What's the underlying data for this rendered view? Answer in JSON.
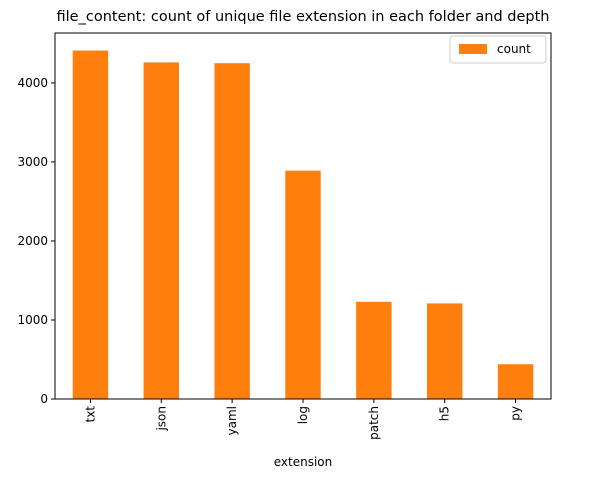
{
  "chart_data": {
    "type": "bar",
    "title": "file_content: count of unique file extension in each folder and depth",
    "xlabel": "extension",
    "ylabel": "",
    "categories": [
      "txt",
      "json",
      "yaml",
      "log",
      "patch",
      "h5",
      "py"
    ],
    "series": [
      {
        "name": "count",
        "color": "#ff7f0e",
        "values": [
          4410,
          4260,
          4250,
          2890,
          1230,
          1210,
          440
        ]
      }
    ],
    "ylim": [
      0,
      4632
    ],
    "yticks": [
      0,
      1000,
      2000,
      3000,
      4000
    ],
    "grid": false,
    "legend_position": "upper-right",
    "x_tick_rotation": "vertical"
  }
}
